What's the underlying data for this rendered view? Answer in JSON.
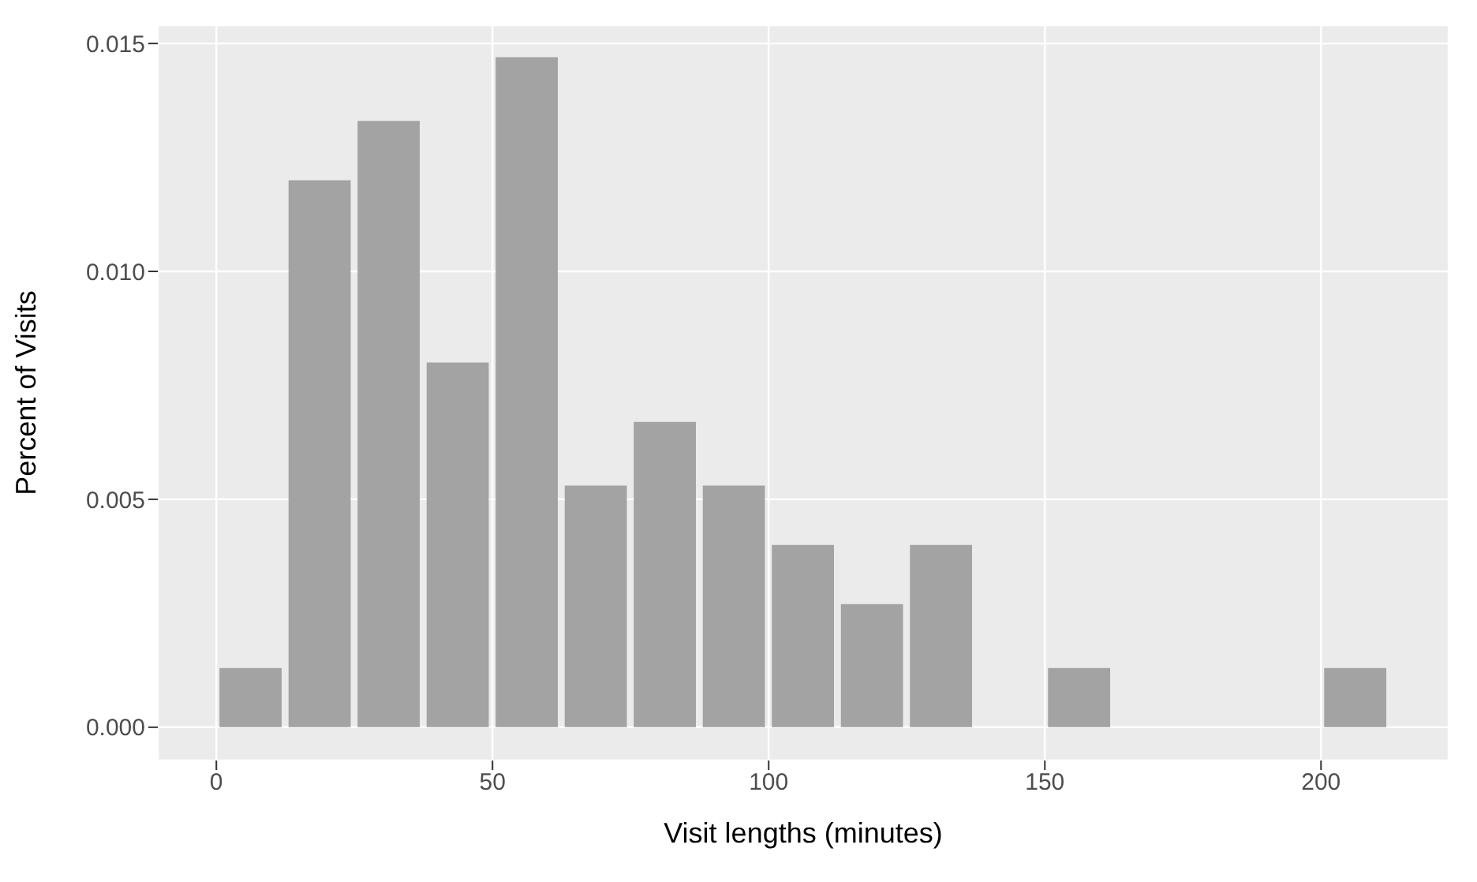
{
  "chart_data": {
    "type": "histogram",
    "xlabel": "Visit lengths (minutes)",
    "ylabel": "Percent of Visits",
    "bins": [
      0,
      12.5,
      25,
      37.5,
      50,
      62.5,
      75,
      87.5,
      100,
      112.5,
      125,
      137.5,
      150,
      162.5,
      175,
      187.5,
      200,
      212.5
    ],
    "values": [
      0.0013,
      0.012,
      0.0133,
      0.008,
      0.0147,
      0.0053,
      0.0067,
      0.0053,
      0.004,
      0.0027,
      0.004,
      0,
      0.0013,
      0,
      0,
      0,
      0.0013
    ],
    "color": "#a3a3a3",
    "xlim": [
      -10.6,
      223.1
    ],
    "xticks": [
      0,
      50,
      100,
      150,
      200
    ],
    "ylim": [
      -0.00073,
      0.0154
    ],
    "yticks": [
      {
        "value": 0,
        "label": "0.000"
      },
      {
        "value": 0.005,
        "label": "0.005"
      },
      {
        "value": 0.01,
        "label": "0.010"
      },
      {
        "value": 0.015,
        "label": "0.015"
      }
    ],
    "grid": true
  }
}
